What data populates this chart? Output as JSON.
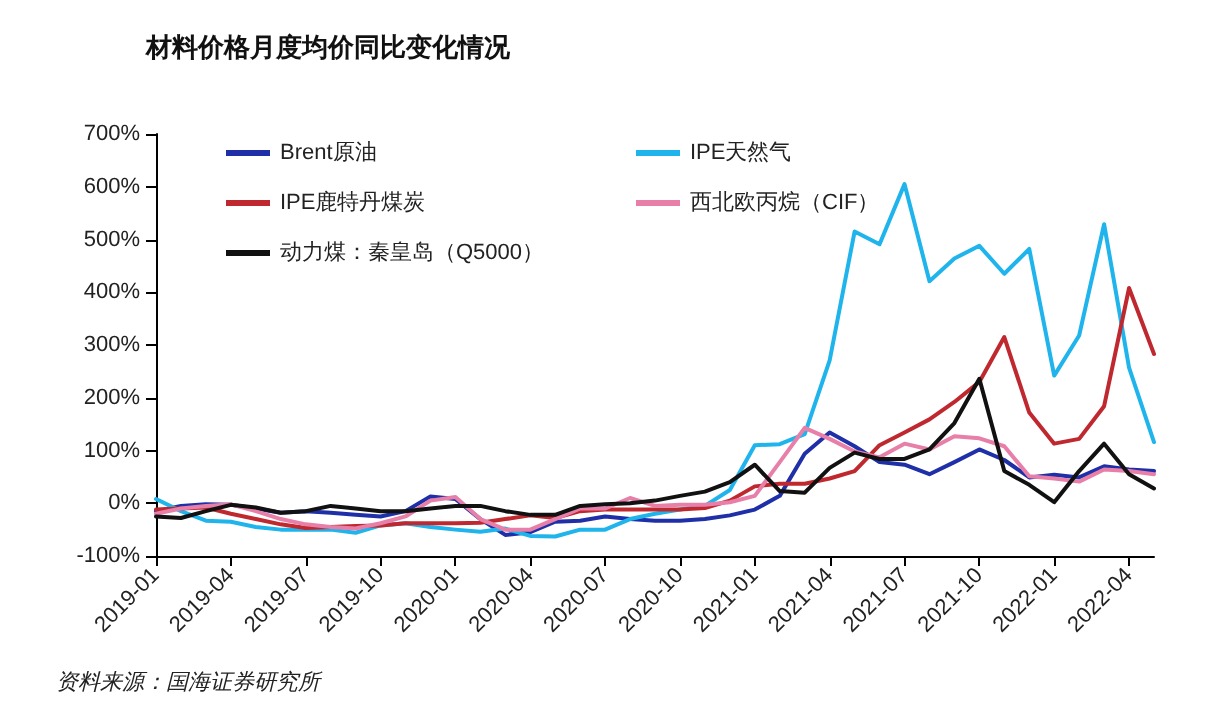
{
  "chart_data": {
    "type": "line",
    "title": "材料价格月度均价同比变化情况",
    "categories": [
      "2019-01",
      null,
      null,
      "2019-04",
      null,
      null,
      "2019-07",
      null,
      null,
      "2019-10",
      null,
      null,
      "2020-01",
      null,
      null,
      "2020-04",
      null,
      null,
      "2020-07",
      null,
      null,
      "2020-10",
      null,
      null,
      "2021-01",
      null,
      null,
      "2021-04",
      null,
      null,
      "2021-07",
      null,
      null,
      "2021-10",
      null,
      null,
      "2022-01",
      null,
      null,
      "2022-04",
      null
    ],
    "series": [
      {
        "name": "Brent原油",
        "color": "#1f2fa8",
        "values": [
          -15,
          -5,
          -2,
          -3,
          -10,
          -18,
          -15,
          -18,
          -22,
          -25,
          -15,
          13,
          8,
          -30,
          -60,
          -55,
          -35,
          -33,
          -25,
          -30,
          -33,
          -33,
          -30,
          -23,
          -12,
          14,
          94,
          134,
          108,
          78,
          73,
          55,
          78,
          102,
          82,
          49,
          54,
          49,
          70,
          64,
          61
        ]
      },
      {
        "name": "IPE天然气",
        "color": "#1fb4ec",
        "values": [
          8,
          -15,
          -33,
          -35,
          -45,
          -50,
          -50,
          -50,
          -56,
          -42,
          -38,
          -45,
          -50,
          -54,
          -48,
          -62,
          -63,
          -50,
          -50,
          -30,
          -20,
          -12,
          -5,
          25,
          110,
          112,
          131,
          271,
          515,
          491,
          605,
          421,
          464,
          488,
          435,
          482,
          242,
          318,
          529,
          257,
          116
        ]
      },
      {
        "name": "IPE鹿特丹煤炭",
        "color": "#c0282f",
        "values": [
          -12,
          -10,
          -8,
          -20,
          -30,
          -40,
          -47,
          -45,
          -43,
          -42,
          -38,
          -38,
          -38,
          -37,
          -30,
          -23,
          -28,
          -15,
          -12,
          -12,
          -12,
          -12,
          -9,
          5,
          32,
          37,
          37,
          47,
          61,
          110,
          134,
          159,
          192,
          230,
          315,
          172,
          113,
          122,
          184,
          408,
          283
        ]
      },
      {
        "name": "西北欧丙烷（CIF）",
        "color": "#e87fa8",
        "values": [
          -20,
          -10,
          -5,
          -2,
          -15,
          -30,
          -40,
          -45,
          -48,
          -38,
          -25,
          5,
          12,
          -30,
          -50,
          -50,
          -30,
          -10,
          -10,
          10,
          -5,
          -3,
          -3,
          2,
          14,
          78,
          143,
          122,
          98,
          87,
          113,
          102,
          127,
          123,
          108,
          51,
          47,
          41,
          64,
          61,
          55
        ]
      },
      {
        "name": "动力煤：秦皇岛（Q5000）",
        "color": "#111111",
        "values": [
          -25,
          -28,
          -15,
          -3,
          -8,
          -18,
          -15,
          -5,
          -10,
          -15,
          -15,
          -10,
          -5,
          -5,
          -15,
          -22,
          -22,
          -5,
          -2,
          0,
          5,
          14,
          22,
          40,
          73,
          23,
          20,
          67,
          96,
          84,
          84,
          102,
          152,
          236,
          61,
          35,
          2,
          61,
          113,
          55,
          28
        ]
      }
    ],
    "ylim": [
      -100,
      700
    ],
    "yticks": [
      {
        "value": -100,
        "label": "-100%"
      },
      {
        "value": 0,
        "label": "0%"
      },
      {
        "value": 100,
        "label": "100%"
      },
      {
        "value": 200,
        "label": "200%"
      },
      {
        "value": 300,
        "label": "300%"
      },
      {
        "value": 400,
        "label": "400%"
      },
      {
        "value": 500,
        "label": "500%"
      },
      {
        "value": 600,
        "label": "600%"
      },
      {
        "value": 700,
        "label": "700%"
      }
    ],
    "grid": false,
    "legend": "top left",
    "annotations": [
      "资料来源：国海证券研究所"
    ]
  }
}
